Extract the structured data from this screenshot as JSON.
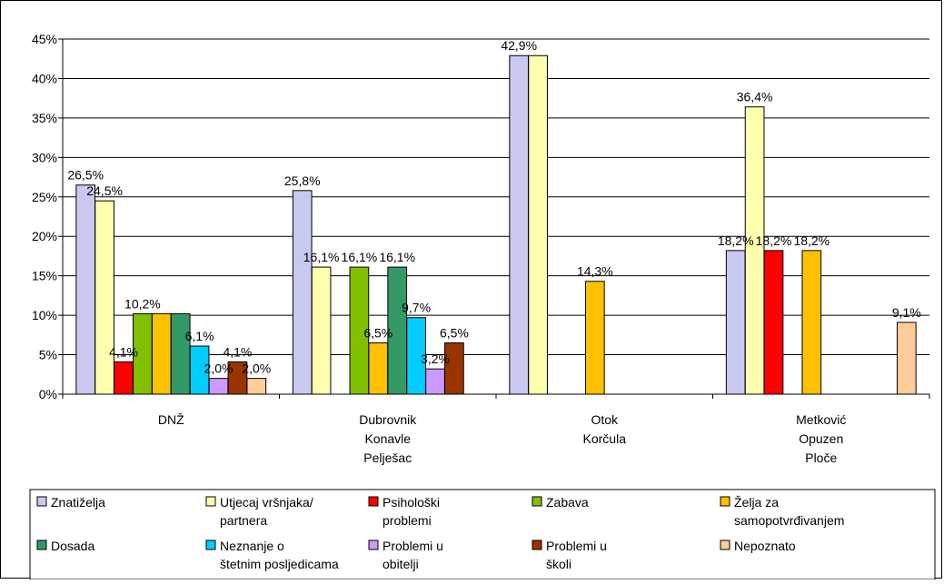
{
  "chart_data": {
    "type": "bar",
    "categories": [
      [
        "DNŽ"
      ],
      [
        "Dubrovnik",
        "Konavle",
        "Pelješac"
      ],
      [
        "Otok",
        "Korčula"
      ],
      [
        "Metković",
        "Opuzen",
        "Ploče"
      ]
    ],
    "ylim": [
      0,
      45
    ],
    "yticks": [
      "0%",
      "5%",
      "10%",
      "15%",
      "20%",
      "25%",
      "30%",
      "35%",
      "40%",
      "45%"
    ],
    "grid": true,
    "legend_position": "bottom",
    "series": [
      {
        "name": "Znatiželja",
        "label_lines": [
          "Znatiželja"
        ],
        "color": "#C8C8F0",
        "values": [
          26.5,
          25.8,
          42.9,
          18.2
        ],
        "labels": [
          "26,5%",
          "25,8%",
          "42,9%",
          "18,2%"
        ]
      },
      {
        "name": "Utjecaj vršnjaka/ partnera",
        "label_lines": [
          "Utjecaj vršnjaka/",
          "partnera"
        ],
        "color": "#FFFFB0",
        "values": [
          24.5,
          16.1,
          42.9,
          36.4
        ],
        "labels": [
          "24,5%",
          "16,1%",
          "",
          "36,4%"
        ]
      },
      {
        "name": "Psihološki problemi",
        "label_lines": [
          "Psihološki",
          "problemi"
        ],
        "color": "#FF0000",
        "values": [
          4.1,
          null,
          null,
          18.2
        ],
        "labels": [
          "4,1%",
          "",
          "",
          "18,2%"
        ]
      },
      {
        "name": "Zabava",
        "label_lines": [
          "Zabava"
        ],
        "color": "#80C000",
        "values": [
          10.2,
          16.1,
          null,
          null
        ],
        "labels": [
          "10,2%",
          "16,1%",
          "",
          ""
        ]
      },
      {
        "name": "Želja za samopotvrđivanjem",
        "label_lines": [
          "Želja za",
          "samopotvrđivanjem"
        ],
        "color": "#FFC000",
        "values": [
          10.2,
          6.5,
          14.3,
          18.2
        ],
        "labels": [
          "",
          "6,5%",
          "14,3%",
          "18,2%"
        ]
      },
      {
        "name": "Dosada",
        "label_lines": [
          "Dosada"
        ],
        "color": "#339966",
        "values": [
          10.2,
          16.1,
          null,
          null
        ],
        "labels": [
          "",
          "16,1%",
          "",
          ""
        ]
      },
      {
        "name": "Neznanje o štetnim posljedicama",
        "label_lines": [
          "Neznanje o",
          "štetnim posljedicama"
        ],
        "color": "#00CCFF",
        "values": [
          6.1,
          9.7,
          null,
          null
        ],
        "labels": [
          "6,1%",
          "9,7%",
          "",
          ""
        ]
      },
      {
        "name": "Problemi u obitelji",
        "label_lines": [
          "Problemi u",
          "obitelji"
        ],
        "color": "#CC99FF",
        "values": [
          2.0,
          3.2,
          null,
          null
        ],
        "labels": [
          "2,0%",
          "3,2%",
          "",
          ""
        ]
      },
      {
        "name": "Problemi u školi",
        "label_lines": [
          "Problemi u",
          "školi"
        ],
        "color": "#993300",
        "values": [
          4.1,
          6.5,
          null,
          null
        ],
        "labels": [
          "4,1%",
          "6,5%",
          "",
          ""
        ]
      },
      {
        "name": "Nepoznato",
        "label_lines": [
          "Nepoznato"
        ],
        "color": "#FFCC99",
        "values": [
          2.0,
          null,
          null,
          9.1
        ],
        "labels": [
          "2,0%",
          "",
          "",
          "9,1%"
        ]
      }
    ]
  }
}
